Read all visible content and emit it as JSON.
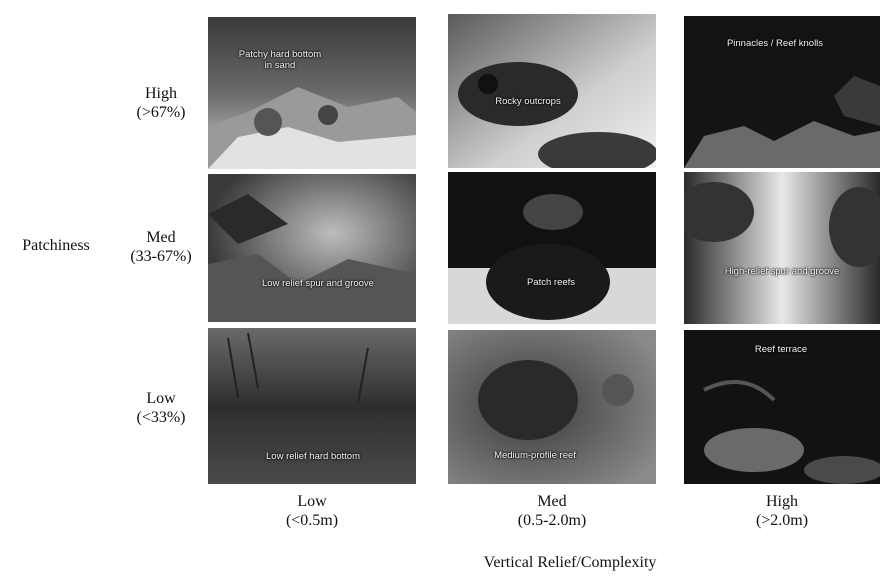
{
  "row_axis": {
    "title": "Patchiness",
    "rows": [
      {
        "level": "High",
        "range": "(>67%)"
      },
      {
        "level": "Med",
        "range": "(33-67%)"
      },
      {
        "level": "Low",
        "range": "(<33%)"
      }
    ]
  },
  "col_axis": {
    "title": "Vertical Relief/Complexity",
    "cols": [
      {
        "level": "Low",
        "range": "(<0.5m)"
      },
      {
        "level": "Med",
        "range": "(0.5-2.0m)"
      },
      {
        "level": "High",
        "range": "(>2.0m)"
      }
    ]
  },
  "panels": [
    {
      "caption": "Patchy hard bottom\nin sand"
    },
    {
      "caption": "Rocky outcrops"
    },
    {
      "caption": "Pinnacles / Reef knolls"
    },
    {
      "caption": "Low relief spur and groove"
    },
    {
      "caption": "Patch reefs"
    },
    {
      "caption": "High-relief spur and groove"
    },
    {
      "caption": "Low relief hard bottom"
    },
    {
      "caption": "Medium-profile reef"
    },
    {
      "caption": "Reef terrace"
    }
  ]
}
